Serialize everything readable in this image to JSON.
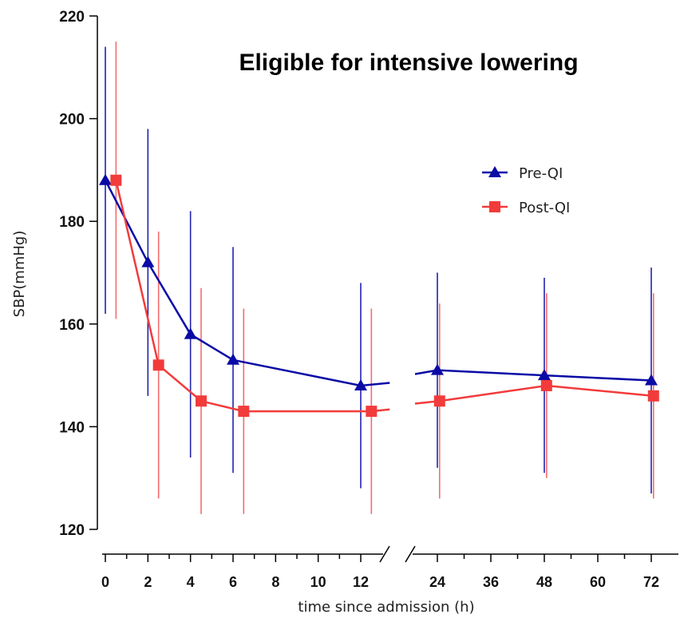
{
  "chart_data": {
    "type": "line",
    "title": "Eligible for intensive lowering",
    "xlabel": "time since admission (h)",
    "ylabel": "SBP(mmHg)",
    "ylim": [
      120,
      220
    ],
    "yticks": [
      "120",
      "140",
      "160",
      "180",
      "200",
      "220"
    ],
    "x_segments": [
      {
        "range": [
          0,
          13
        ],
        "ticks": [
          "0",
          "2",
          "4",
          "6",
          "8",
          "10",
          "12"
        ]
      },
      {
        "range": [
          17,
          78
        ],
        "ticks": [
          "24",
          "36",
          "48",
          "60",
          "72"
        ]
      }
    ],
    "axis_break": true,
    "grid": false,
    "legend": "top-right",
    "series": [
      {
        "name": "Pre-QI",
        "color": "#0a0aa6",
        "marker": "triangle",
        "x": [
          0,
          2,
          4,
          6,
          12,
          24,
          48,
          72
        ],
        "y": [
          188,
          172,
          158,
          153,
          148,
          151,
          150,
          149
        ],
        "err_low": [
          162,
          146,
          134,
          131,
          128,
          132,
          131,
          127
        ],
        "err_high": [
          214,
          198,
          182,
          175,
          168,
          170,
          169,
          171
        ]
      },
      {
        "name": "Post-QI",
        "color": "#f23b3b",
        "marker": "square",
        "x": [
          0.5,
          2.5,
          4.5,
          6.5,
          12.5,
          24.5,
          48.5,
          72.5
        ],
        "y": [
          188,
          152,
          145,
          143,
          143,
          145,
          148,
          146
        ],
        "err_low": [
          161,
          126,
          123,
          123,
          123,
          126,
          130,
          126
        ],
        "err_high": [
          215,
          178,
          167,
          163,
          163,
          164,
          166,
          166
        ]
      }
    ]
  }
}
